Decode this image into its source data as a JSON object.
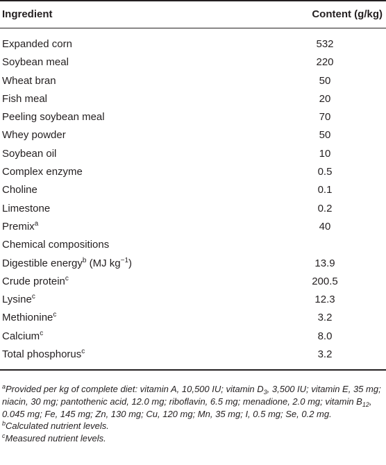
{
  "table": {
    "header": {
      "ingredient": "Ingredient",
      "content": "Content (g/kg)"
    },
    "rows": [
      {
        "name": "Expanded corn",
        "value": "532"
      },
      {
        "name": "Soybean meal",
        "value": "220"
      },
      {
        "name": "Wheat bran",
        "value": "50"
      },
      {
        "name": "Fish meal",
        "value": "20"
      },
      {
        "name": "Peeling soybean meal",
        "value": "70"
      },
      {
        "name": "Whey powder",
        "value": "50"
      },
      {
        "name": "Soybean oil",
        "value": "10"
      },
      {
        "name": "Complex enzyme",
        "value": "0.5"
      },
      {
        "name": "Choline",
        "value": "0.1"
      },
      {
        "name": "Limestone",
        "value": "0.2"
      },
      {
        "name": "Premix",
        "sup": "a",
        "value": "40"
      },
      {
        "name": "Chemical compositions",
        "value": ""
      },
      {
        "name": "Digestible energy",
        "sup": "b",
        "suffix": " (MJ kg",
        "suffix_sup": "−1",
        "suffix_end": ")",
        "value": "13.9"
      },
      {
        "name": "Crude protein",
        "sup": "c",
        "value": "200.5"
      },
      {
        "name": "Lysine",
        "sup": "c",
        "value": "12.3"
      },
      {
        "name": "Methionine",
        "sup": "c",
        "value": "3.2"
      },
      {
        "name": "Calcium",
        "sup": "c",
        "value": "8.0"
      },
      {
        "name": "Total phosphorus",
        "sup": "c",
        "value": "3.2"
      }
    ]
  },
  "footnotes": {
    "a": {
      "mark": "a",
      "p1": "Provided per kg of complete diet: vitamin A, 10,500 IU; vitamin D",
      "sub1": "3",
      "p2": ", 3,500 IU; vitamin E, 35 mg; niacin, 30 mg; pantothenic acid, 12.0 mg; riboflavin, 6.5 mg; menadione, 2.0 mg; vitamin B",
      "sub2": "12",
      "p3": ", 0.045 mg; Fe, 145 mg; Zn, 130 mg; Cu, 120 mg; Mn, 35 mg; I, 0.5 mg; Se, 0.2 mg."
    },
    "b": {
      "mark": "b",
      "text": "Calculated nutrient levels."
    },
    "c": {
      "mark": "c",
      "text": "Measured nutrient levels."
    }
  }
}
